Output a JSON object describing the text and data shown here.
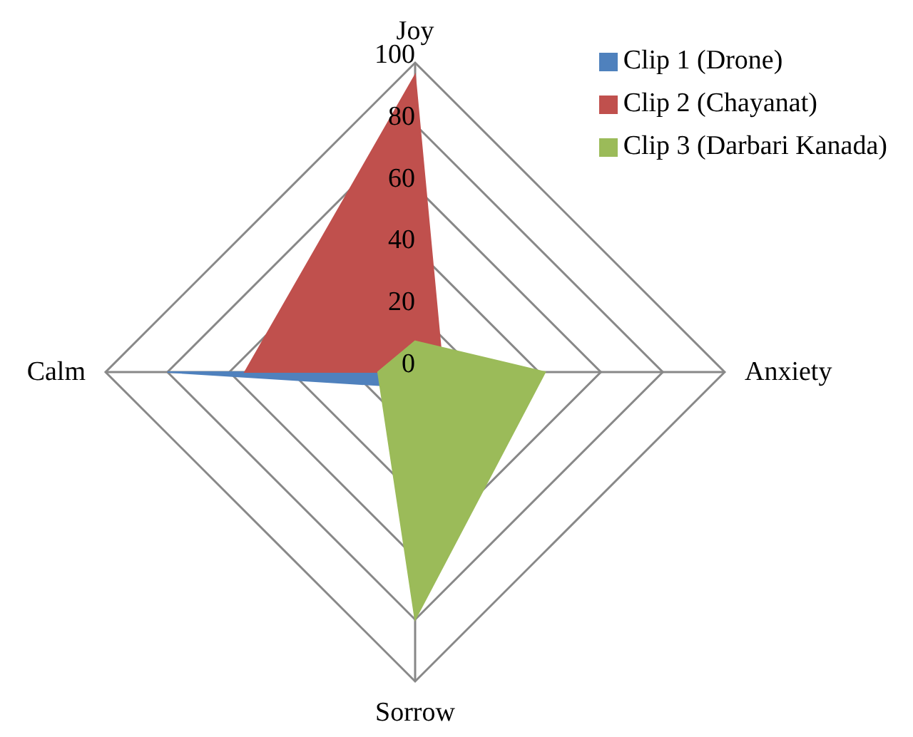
{
  "chart_data": {
    "type": "radar",
    "categories": [
      "Joy",
      "Anxiety",
      "Sorrow",
      "Calm"
    ],
    "series": [
      {
        "name": "Clip 1 (Drone)",
        "color": "#4f81bd",
        "values": [
          0,
          0,
          5,
          80
        ]
      },
      {
        "name": "Clip 2 (Chayanat)",
        "color": "#c0504d",
        "values": [
          96,
          9,
          0,
          55
        ]
      },
      {
        "name": "Clip 3 (Darbari Kanada)",
        "color": "#9bbb59",
        "values": [
          10,
          42,
          80,
          12
        ]
      }
    ],
    "ylim": [
      0,
      100
    ],
    "yticks": [
      0,
      20,
      40,
      60,
      80,
      100
    ],
    "grid": true,
    "legend": "top right"
  }
}
